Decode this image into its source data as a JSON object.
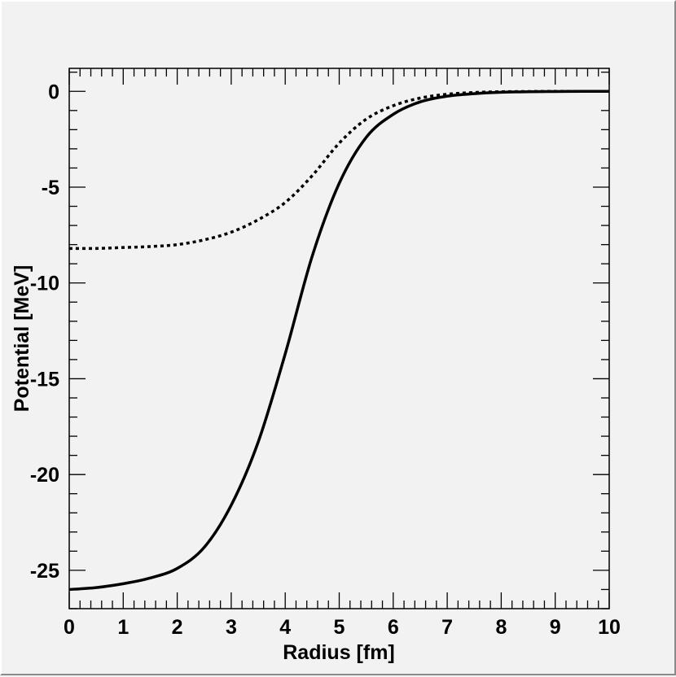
{
  "chart_data": {
    "type": "line",
    "xlabel": "Radius [fm]",
    "ylabel": "Potential [MeV]",
    "xlim": [
      0,
      10
    ],
    "ylim": [
      -27,
      1.2
    ],
    "x_ticks": [
      0,
      1,
      2,
      3,
      4,
      5,
      6,
      7,
      8,
      9,
      10
    ],
    "y_ticks": [
      0,
      -5,
      -10,
      -15,
      -20,
      -25
    ],
    "x_tick_labels": [
      "0",
      "1",
      "2",
      "3",
      "4",
      "5",
      "6",
      "7",
      "8",
      "9",
      "10"
    ],
    "y_tick_labels": [
      "0",
      "-5",
      "-10",
      "-15",
      "-20",
      "-25"
    ],
    "grid": false,
    "series": [
      {
        "style": "solid",
        "color": "#000000",
        "x": [
          0,
          0.5,
          1,
          1.5,
          2,
          2.5,
          3,
          3.5,
          4,
          4.5,
          5,
          5.5,
          6,
          6.5,
          7,
          7.5,
          8,
          8.5,
          9,
          9.5,
          10
        ],
        "y": [
          -26.0,
          -25.9,
          -25.7,
          -25.4,
          -24.9,
          -23.8,
          -21.6,
          -18.3,
          -13.7,
          -8.6,
          -4.8,
          -2.4,
          -1.2,
          -0.55,
          -0.25,
          -0.12,
          -0.05,
          -0.02,
          -0.01,
          0.0,
          0.0
        ]
      },
      {
        "style": "dotted",
        "color": "#000000",
        "x": [
          0,
          0.5,
          1,
          1.5,
          2,
          2.5,
          3,
          3.5,
          4,
          4.5,
          5,
          5.5,
          6,
          6.5,
          7,
          7.5,
          8,
          8.5,
          9,
          9.5,
          10
        ],
        "y": [
          -8.2,
          -8.2,
          -8.15,
          -8.1,
          -8.0,
          -7.75,
          -7.35,
          -6.7,
          -5.8,
          -4.4,
          -2.7,
          -1.45,
          -0.75,
          -0.35,
          -0.15,
          -0.06,
          -0.02,
          -0.01,
          0.0,
          0.0,
          0.0
        ]
      }
    ]
  }
}
